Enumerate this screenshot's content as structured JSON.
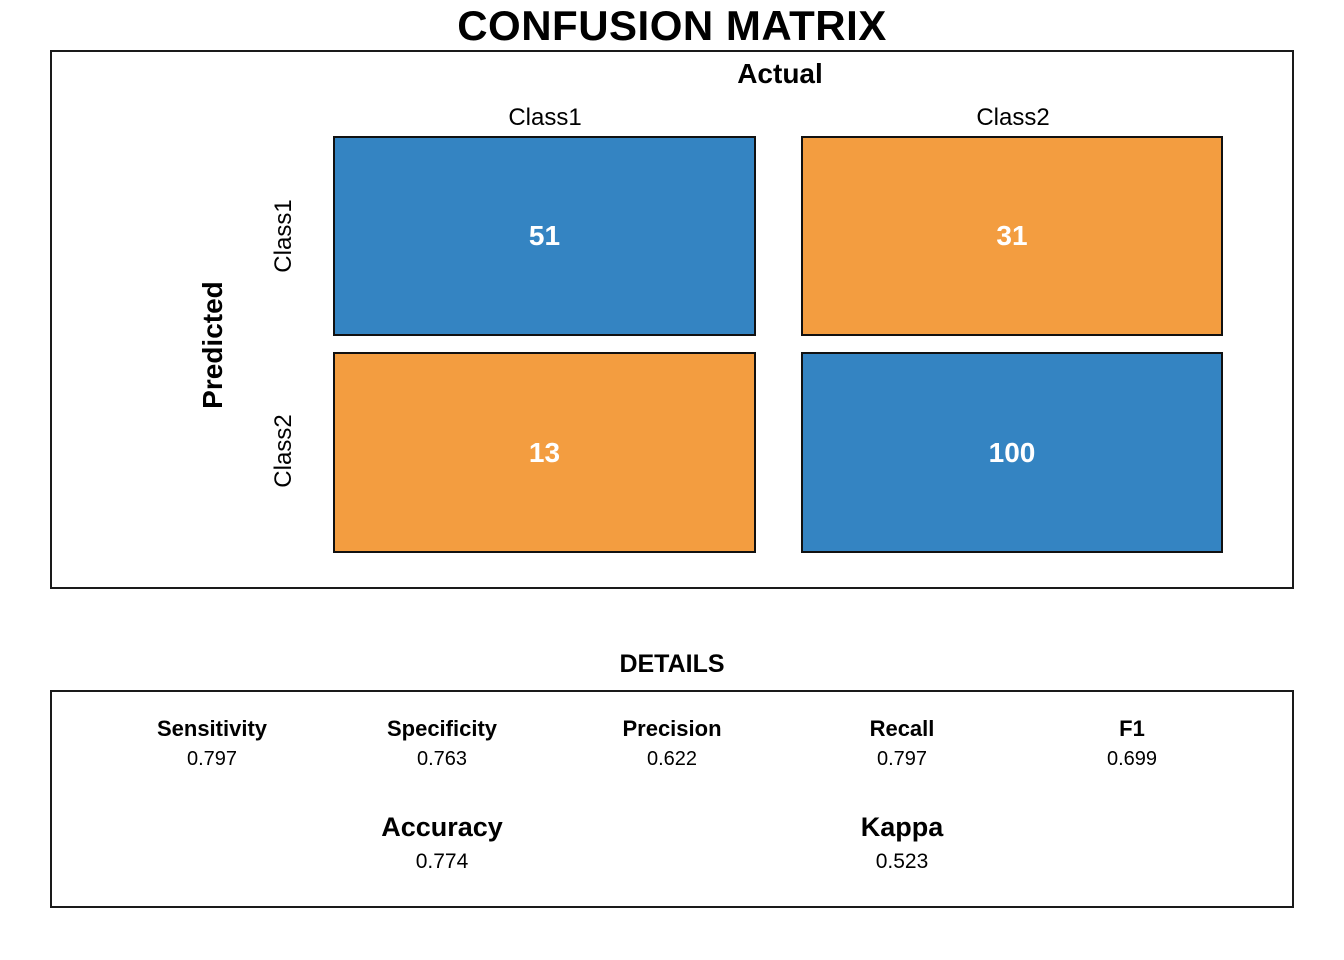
{
  "title": "CONFUSION MATRIX",
  "colors": {
    "blue": "#3484C2",
    "orange": "#F39D40",
    "cell_text": "#FFFFFF",
    "border": "#1A1A1A"
  },
  "chart_data": {
    "type": "heatmap",
    "title": "CONFUSION MATRIX",
    "xlabel": "Actual",
    "ylabel": "Predicted",
    "x_categories": [
      "Class1",
      "Class2"
    ],
    "y_categories": [
      "Class1",
      "Class2"
    ],
    "matrix": [
      [
        51,
        31
      ],
      [
        13,
        100
      ]
    ],
    "cell_colors": [
      [
        "#3484C2",
        "#F39D40"
      ],
      [
        "#F39D40",
        "#3484C2"
      ]
    ],
    "legend": "none",
    "annotations": {
      "sensitivity": 0.797,
      "specificity": 0.763,
      "precision": 0.622,
      "recall": 0.797,
      "f1": 0.699,
      "accuracy": 0.774,
      "kappa": 0.523
    }
  },
  "details": {
    "heading": "DETAILS",
    "metrics": [
      {
        "label": "Sensitivity",
        "value": "0.797"
      },
      {
        "label": "Specificity",
        "value": "0.763"
      },
      {
        "label": "Precision",
        "value": "0.622"
      },
      {
        "label": "Recall",
        "value": "0.797"
      },
      {
        "label": "F1",
        "value": "0.699"
      }
    ],
    "summary": [
      {
        "label": "Accuracy",
        "value": "0.774"
      },
      {
        "label": "Kappa",
        "value": "0.523"
      }
    ]
  }
}
